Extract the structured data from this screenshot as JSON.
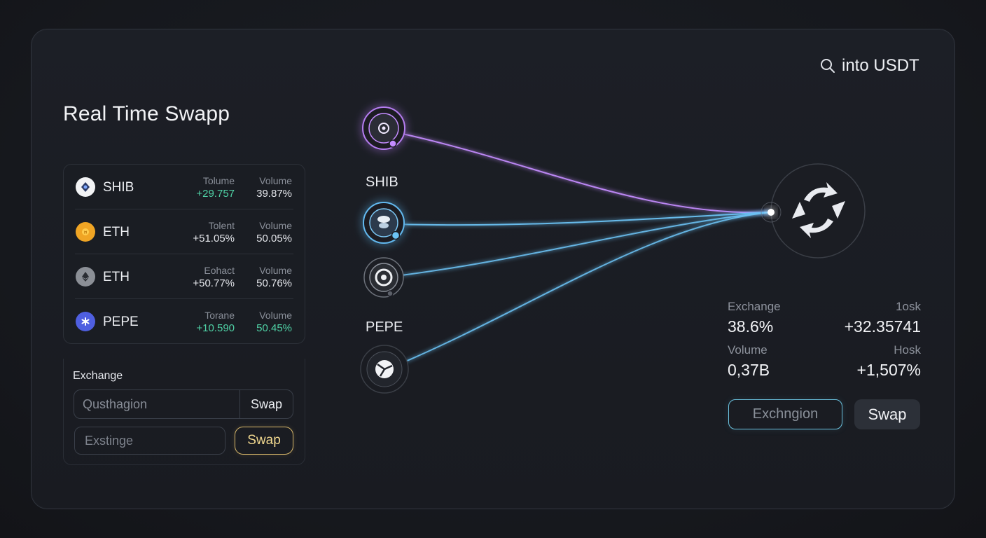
{
  "header": {
    "title": "Real Time Swapp",
    "search_label": "into USDT"
  },
  "tokens": [
    {
      "name": "SHIB",
      "icon": "shib-token-icon",
      "col1_header": "Tolume",
      "col1_value": "+29.757",
      "col1_color": "#4fd1a5",
      "col2_header": "Volume",
      "col2_value": "39.87%",
      "col2_color": "#e4e6eb"
    },
    {
      "name": "ETH",
      "icon": "gold-coin-icon",
      "col1_header": "Tolent",
      "col1_value": "+51.05%",
      "col1_color": "#e4e6eb",
      "col2_header": "Volume",
      "col2_value": "50.05%",
      "col2_color": "#e4e6eb"
    },
    {
      "name": "ETH",
      "icon": "ethereum-icon",
      "col1_header": "Eohact",
      "col1_value": "+50.77%",
      "col1_color": "#e4e6eb",
      "col2_header": "Volume",
      "col2_value": "50.76%",
      "col2_color": "#e4e6eb"
    },
    {
      "name": "PEPE",
      "icon": "pepe-token-icon",
      "col1_header": "Torane",
      "col1_value": "+10.590",
      "col1_color": "#4fd1a5",
      "col2_header": "Volume",
      "col2_value": "50.45%",
      "col2_color": "#4fd1a5"
    }
  ],
  "exchange": {
    "label": "Exchange",
    "input1_placeholder": "Qusthagion",
    "input1_button": "Swap",
    "input2_placeholder": "Exstinge",
    "input2_button": "Swap"
  },
  "flow": {
    "node_labels": [
      "SHIB",
      "PEPE"
    ],
    "colors": {
      "purple": "#c48cff",
      "blue": "#6cc3f5"
    },
    "hub_icon": "swap-arrows-icon"
  },
  "stats": {
    "exchange_label": "Exchange",
    "exchange_value": "38.6%",
    "right1_label": "1osk",
    "right1_value": "+32.35741",
    "volume_label": "Volume",
    "volume_value": "0,37B",
    "right2_label": "Hosk",
    "right2_value": "+1,507%"
  },
  "action": {
    "input_placeholder": "Exchngion",
    "button": "Swap"
  }
}
